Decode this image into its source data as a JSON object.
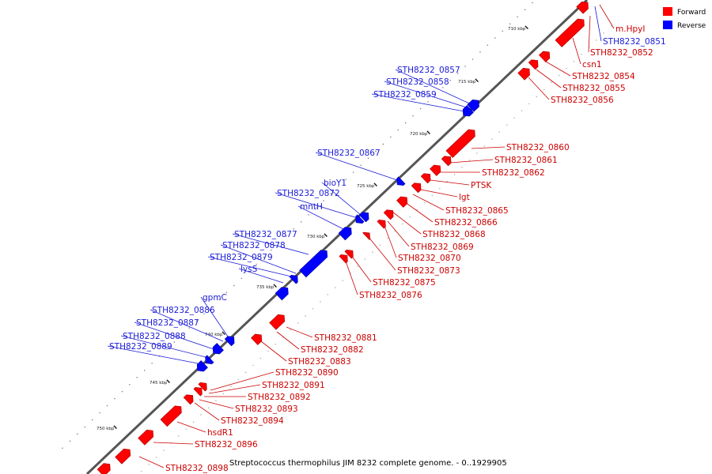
{
  "caption": "Streptococcus thermophilus JIM 8232 complete genome. - 0..1929905",
  "legend": [
    {
      "label": "Forward",
      "color": "#ff0000"
    },
    {
      "label": "Reverse",
      "color": "#0000ff"
    }
  ],
  "axis_ticks": [
    "710 kbp",
    "715 kbp",
    "720 kbp",
    "725 kbp",
    "730 kbp",
    "735 kbp",
    "740 kbp",
    "745 kbp",
    "750 kbp"
  ],
  "forward_genes": [
    "m.HpyI",
    "STH8232_0852",
    "csn1",
    "STH8232_0854",
    "STH8232_0855",
    "STH8232_0856",
    "STH8232_0860",
    "STH8232_0861",
    "STH8232_0862",
    "PTSK",
    "lgt",
    "STH8232_0865",
    "STH8232_0866",
    "STH8232_0868",
    "STH8232_0869",
    "STH8232_0870",
    "STH8232_0873",
    "STH8232_0875",
    "STH8232_0876",
    "STH8232_0881",
    "STH8232_0882",
    "STH8232_0883",
    "STH8232_0890",
    "STH8232_0891",
    "STH8232_0892",
    "STH8232_0893",
    "STH8232_0894",
    "hsdR1",
    "STH8232_0896",
    "STH8232_0898"
  ],
  "reverse_genes": [
    "STH8232_0851",
    "STH8232_0857",
    "STH8232_0858",
    "STH8232_0859",
    "STH8232_0867",
    "bioY1",
    "STH8232_0872",
    "mntH",
    "STH8232_0877",
    "STH8232_0878",
    "STH8232_0879",
    "lysS",
    "gpmC",
    "STH8232_0886",
    "STH8232_0887",
    "STH8232_0888",
    "STH8232_0889"
  ]
}
